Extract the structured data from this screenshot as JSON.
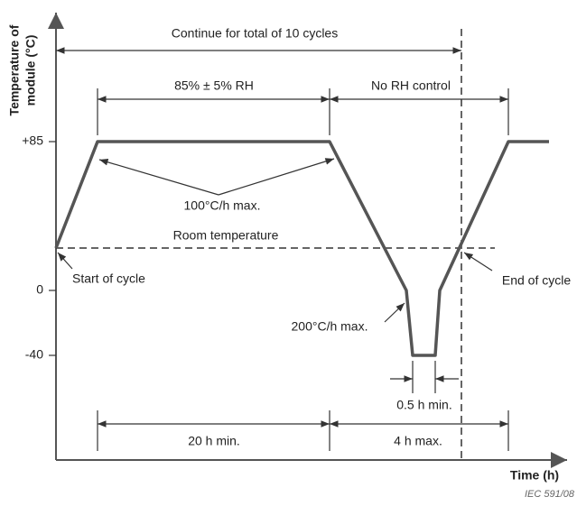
{
  "title_y_axis": [
    "Temperature of",
    "module (°C)"
  ],
  "x_axis_label": "Time (h)",
  "y_labels": [
    "+85",
    "0",
    "-40"
  ],
  "annotations": {
    "cycles": "Continue for total of 10 cycles",
    "humidity": "85% ± 5% RH",
    "no_rh": "No RH control",
    "ramp_up": "100°C/h max.",
    "room": "Room temperature",
    "start": "Start of cycle",
    "end": "End of cycle",
    "ramp_down": "200°C/h max.",
    "dwell_cold": "0.5 h min.",
    "dwell_hot": "20 h min.",
    "transition": "4 h max."
  },
  "figure_id": "IEC 591/08"
}
